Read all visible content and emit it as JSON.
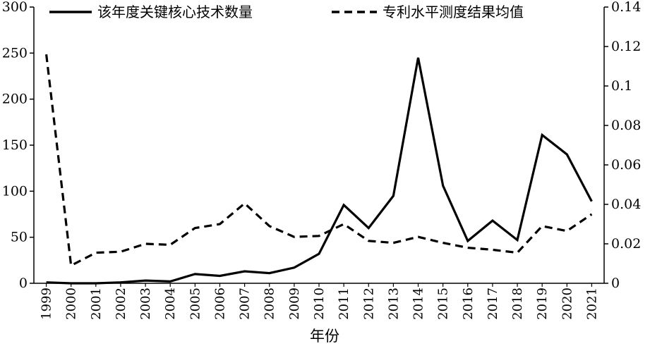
{
  "chart_data": {
    "type": "line",
    "xlabel": "年份",
    "x": [
      "1999",
      "2000",
      "2001",
      "2002",
      "2003",
      "2004",
      "2005",
      "2006",
      "2007",
      "2008",
      "2009",
      "2010",
      "2011",
      "2012",
      "2013",
      "2014",
      "2015",
      "2016",
      "2017",
      "2018",
      "2019",
      "2020",
      "2021"
    ],
    "series": [
      {
        "name": "该年度关键核心技术数量",
        "axis": "left",
        "style": "solid",
        "values": [
          1,
          0,
          0,
          1,
          3,
          2,
          10,
          8,
          13,
          11,
          17,
          32,
          85,
          60,
          95,
          245,
          106,
          46,
          68,
          47,
          161,
          140,
          89
        ]
      },
      {
        "name": "专利水平测度结果均值",
        "axis": "right",
        "style": "dashed",
        "values": [
          0.116,
          0.009,
          0.0155,
          0.016,
          0.02,
          0.0195,
          0.028,
          0.03,
          0.0405,
          0.029,
          0.0235,
          0.024,
          0.03,
          0.0215,
          0.0205,
          0.0235,
          0.0205,
          0.018,
          0.017,
          0.0155,
          0.029,
          0.0265,
          0.035
        ]
      }
    ],
    "y_left": {
      "ylim": [
        0,
        300
      ],
      "ticks": [
        0,
        50,
        100,
        150,
        200,
        250,
        300
      ]
    },
    "y_right": {
      "ylim": [
        0,
        0.14
      ],
      "ticks": [
        0,
        0.02,
        0.04,
        0.06,
        0.08,
        0.1,
        0.12,
        0.14
      ],
      "tick_labels": [
        "0",
        "0.02",
        "0.04",
        "0.06",
        "0.08",
        "0.1",
        "0.12",
        "0.14"
      ]
    },
    "legend": "top",
    "grid": false,
    "line_color": "#000000"
  }
}
